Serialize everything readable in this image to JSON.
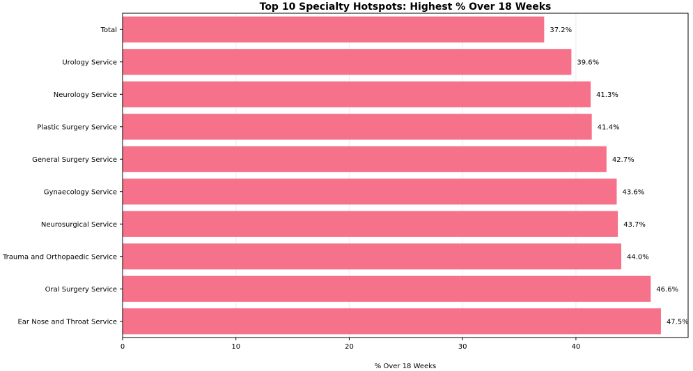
{
  "chart_data": {
    "type": "bar",
    "orientation": "horizontal",
    "title": "Top 10 Specialty Hotspots: Highest % Over 18 Weeks",
    "xlabel": "% Over 18 Weeks",
    "ylabel": "",
    "categories": [
      "Total",
      "Urology Service",
      "Neurology Service",
      "Plastic Surgery Service",
      "General Surgery Service",
      "Gynaecology Service",
      "Neurosurgical Service",
      "Trauma and Orthopaedic Service",
      "Oral Surgery Service",
      "Ear Nose and Throat Service"
    ],
    "values": [
      37.2,
      39.6,
      41.3,
      41.4,
      42.7,
      43.6,
      43.7,
      44.0,
      46.6,
      47.5
    ],
    "value_labels": [
      "37.2%",
      "39.6%",
      "41.3%",
      "41.4%",
      "42.7%",
      "43.6%",
      "43.7%",
      "44.0%",
      "46.6%",
      "47.5%"
    ],
    "xticks": [
      0,
      10,
      20,
      30,
      40
    ],
    "xlim": [
      0,
      49.9
    ],
    "grid": "vertical",
    "bar_color": "#f5728a",
    "grid_color": "#ececec"
  }
}
